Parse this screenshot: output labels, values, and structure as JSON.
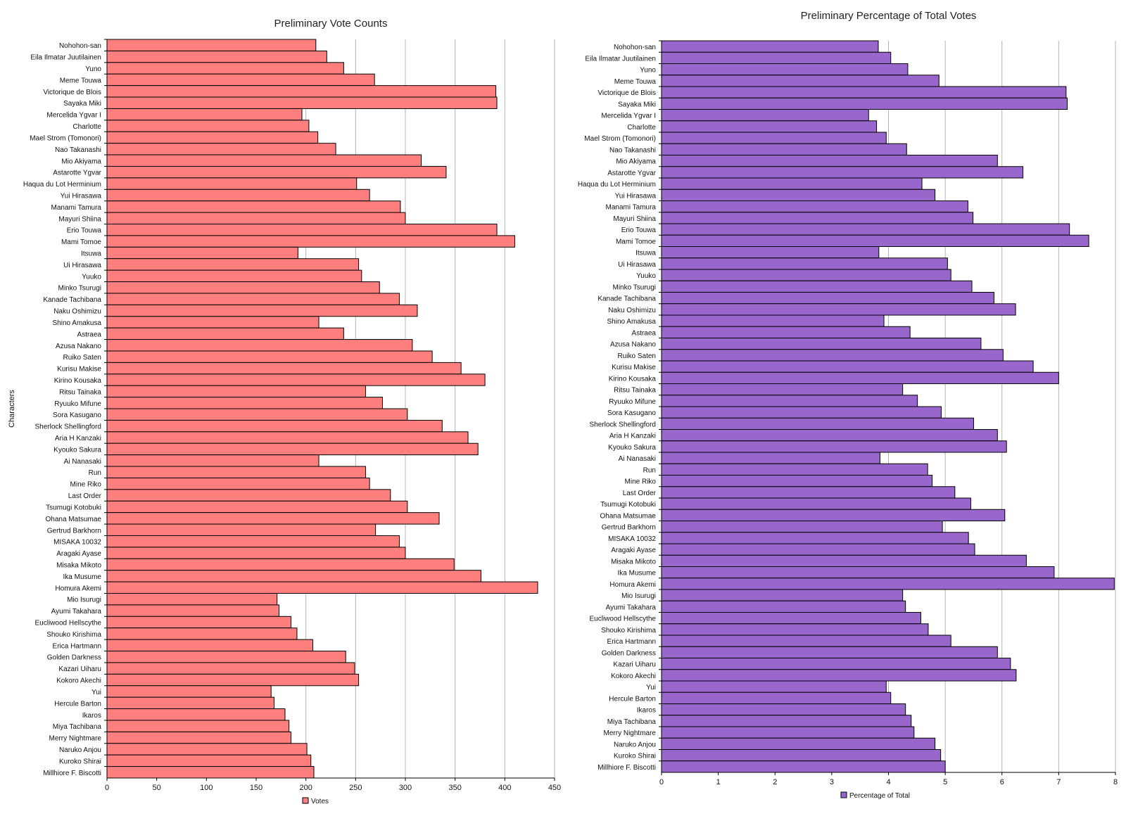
{
  "chart_data": [
    {
      "type": "bar",
      "orientation": "horizontal",
      "title": "Preliminary Vote Counts",
      "ylabel": "Characters",
      "xlabel": "",
      "xlim": [
        0,
        450
      ],
      "xticks": [
        0,
        50,
        100,
        150,
        200,
        250,
        300,
        350,
        400,
        450
      ],
      "grid": true,
      "legend_position": "bottom",
      "bar_color": "#ff7f7f",
      "categories": [
        "Nohohon-san",
        "Eila Ilmatar Juutilainen",
        "Yuno",
        "Meme Touwa",
        "Victorique de Blois",
        "Sayaka Miki",
        "Mercelida Ygvar I",
        "Charlotte",
        "Mael Strom (Tomonori)",
        "Nao Takanashi",
        "Mio Akiyama",
        "Astarotte Ygvar",
        "Haqua du Lot Herminium",
        "Yui Hirasawa",
        "Manami Tamura",
        "Mayuri Shiina",
        "Erio Touwa",
        "Mami Tomoe",
        "Itsuwa",
        "Ui Hirasawa",
        "Yuuko",
        "Minko Tsurugi",
        "Kanade Tachibana",
        "Naku Oshimizu",
        "Shino Amakusa",
        "Astraea",
        "Azusa Nakano",
        "Ruiko Saten",
        "Kurisu Makise",
        "Kirino Kousaka",
        "Ritsu Tainaka",
        "Ryuuko Mifune",
        "Sora Kasugano",
        "Sherlock Shellingford",
        "Aria H Kanzaki",
        "Kyouko Sakura",
        "Ai Nanasaki",
        "Run",
        "Mine Riko",
        "Last Order",
        "Tsumugi Kotobuki",
        "Ohana Matsumae",
        "Gertrud Barkhorn",
        "MISAKA 10032",
        "Aragaki Ayase",
        "Misaka Mikoto",
        "Ika Musume",
        "Homura Akemi",
        "Mio Isurugi",
        "Ayumi Takahara",
        "Eucliwood Hellscythe",
        "Shouko Kirishima",
        "Erica Hartmann",
        "Golden Darkness",
        "Kazari Uiharu",
        "Kokoro Akechi",
        "Yui",
        "Hercule Barton",
        "Ikaros",
        "Miya Tachibana",
        "Merry Nightmare",
        "Naruko Anjou",
        "Kuroko Shirai",
        "Millhiore F. Biscotti"
      ],
      "series": [
        {
          "name": "Votes",
          "values": [
            210,
            221,
            238,
            269,
            391,
            392,
            196,
            203,
            212,
            230,
            316,
            341,
            251,
            264,
            295,
            300,
            392,
            410,
            192,
            253,
            256,
            274,
            294,
            312,
            213,
            238,
            307,
            327,
            356,
            380,
            260,
            277,
            302,
            337,
            363,
            373,
            213,
            260,
            264,
            285,
            302,
            334,
            270,
            294,
            300,
            349,
            376,
            433,
            171,
            173,
            185,
            191,
            207,
            240,
            249,
            253,
            165,
            168,
            179,
            183,
            185,
            201,
            205,
            208
          ]
        }
      ]
    },
    {
      "type": "bar",
      "orientation": "horizontal",
      "title": "Preliminary Percentage of Total Votes",
      "ylabel": "",
      "xlabel": "",
      "xlim": [
        0,
        8
      ],
      "xticks": [
        0,
        1,
        2,
        3,
        4,
        5,
        6,
        7,
        8
      ],
      "grid": true,
      "legend_position": "bottom",
      "bar_color": "#9966cc",
      "categories": [
        "Nohohon-san",
        "Eila Ilmatar Juutilainen",
        "Yuno",
        "Meme Touwa",
        "Victorique de Blois",
        "Sayaka Miki",
        "Mercelida Ygvar I",
        "Charlotte",
        "Mael Strom (Tomonori)",
        "Nao Takanashi",
        "Mio Akiyama",
        "Astarotte Ygvar",
        "Haqua du Lot Herminium",
        "Yui Hirasawa",
        "Manami Tamura",
        "Mayuri Shiina",
        "Erio Touwa",
        "Mami Tomoe",
        "Itsuwa",
        "Ui Hirasawa",
        "Yuuko",
        "Minko Tsurugi",
        "Kanade Tachibana",
        "Naku Oshimizu",
        "Shino Amakusa",
        "Astraea",
        "Azusa Nakano",
        "Ruiko Saten",
        "Kurisu Makise",
        "Kirino Kousaka",
        "Ritsu Tainaka",
        "Ryuuko Mifune",
        "Sora Kasugano",
        "Sherlock Shellingford",
        "Aria H Kanzaki",
        "Kyouko Sakura",
        "Ai Nanasaki",
        "Run",
        "Mine Riko",
        "Last Order",
        "Tsumugi Kotobuki",
        "Ohana Matsumae",
        "Gertrud Barkhorn",
        "MISAKA 10032",
        "Aragaki Ayase",
        "Misaka Mikoto",
        "Ika Musume",
        "Homura Akemi",
        "Mio Isurugi",
        "Ayumi Takahara",
        "Eucliwood Hellscythe",
        "Shouko Kirishima",
        "Erica Hartmann",
        "Golden Darkness",
        "Kazari Uiharu",
        "Kokoro Akechi",
        "Yui",
        "Hercule Barton",
        "Ikaros",
        "Miya Tachibana",
        "Merry Nightmare",
        "Naruko Anjou",
        "Kuroko Shirai",
        "Millhiore F. Biscotti"
      ],
      "series": [
        {
          "name": "Percentage of Total",
          "values": [
            3.82,
            4.04,
            4.34,
            4.89,
            7.13,
            7.15,
            3.65,
            3.79,
            3.96,
            4.32,
            5.92,
            6.37,
            4.59,
            4.82,
            5.4,
            5.49,
            7.19,
            7.53,
            3.83,
            5.04,
            5.1,
            5.47,
            5.86,
            6.24,
            3.92,
            4.38,
            5.63,
            6.02,
            6.55,
            7.0,
            4.25,
            4.51,
            4.93,
            5.5,
            5.92,
            6.08,
            3.85,
            4.69,
            4.77,
            5.17,
            5.45,
            6.05,
            4.95,
            5.41,
            5.52,
            6.43,
            6.92,
            7.98,
            4.25,
            4.3,
            4.57,
            4.7,
            5.1,
            5.92,
            6.15,
            6.25,
            3.96,
            4.04,
            4.3,
            4.4,
            4.45,
            4.82,
            4.92,
            5.0
          ]
        }
      ]
    }
  ]
}
